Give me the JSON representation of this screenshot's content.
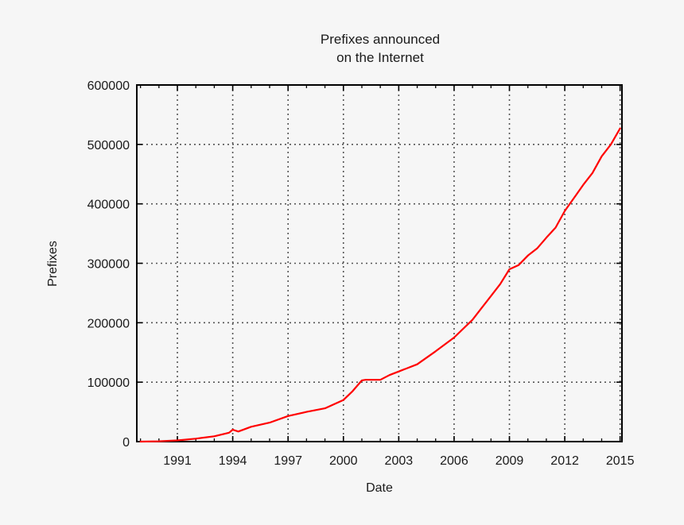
{
  "chart_data": {
    "type": "line",
    "title": [
      "Prefixes announced",
      "on the Internet"
    ],
    "xlabel": "Date",
    "ylabel": "Prefixes",
    "xlim": [
      1988.8,
      2015.1
    ],
    "ylim": [
      0,
      600000
    ],
    "x_ticks": [
      1991,
      1994,
      1997,
      2000,
      2003,
      2006,
      2009,
      2012,
      2015
    ],
    "x_tick_labels": [
      "1991",
      "1994",
      "1997",
      "2000",
      "2003",
      "2006",
      "2009",
      "2012",
      "2015"
    ],
    "y_ticks": [
      0,
      100000,
      200000,
      300000,
      400000,
      500000,
      600000
    ],
    "y_tick_labels": [
      "0",
      "100000",
      "200000",
      "300000",
      "400000",
      "500000",
      "600000"
    ],
    "grid": true,
    "legend": "none",
    "series": [
      {
        "color": "#ff0000",
        "x": [
          1989.0,
          1990.0,
          1991.0,
          1992.0,
          1993.0,
          1993.8,
          1994.0,
          1994.3,
          1995.0,
          1996.0,
          1997.0,
          1998.0,
          1999.0,
          2000.0,
          2000.5,
          2001.0,
          2001.2,
          2002.0,
          2002.5,
          2003.0,
          2004.0,
          2005.0,
          2006.0,
          2007.0,
          2007.5,
          2008.0,
          2008.5,
          2009.0,
          2009.5,
          2010.0,
          2010.5,
          2011.0,
          2011.5,
          2012.0,
          2012.5,
          2013.0,
          2013.5,
          2014.0,
          2014.5,
          2015.0
        ],
        "y": [
          0,
          500,
          2000,
          5000,
          9000,
          15000,
          20000,
          17000,
          25000,
          32000,
          43000,
          50000,
          56000,
          70000,
          85000,
          103000,
          104000,
          104000,
          112000,
          118000,
          130000,
          152000,
          175000,
          205000,
          225000,
          245000,
          265000,
          290000,
          297000,
          313000,
          325000,
          343000,
          360000,
          388000,
          410000,
          432000,
          452000,
          480000,
          500000,
          527000
        ]
      }
    ]
  }
}
